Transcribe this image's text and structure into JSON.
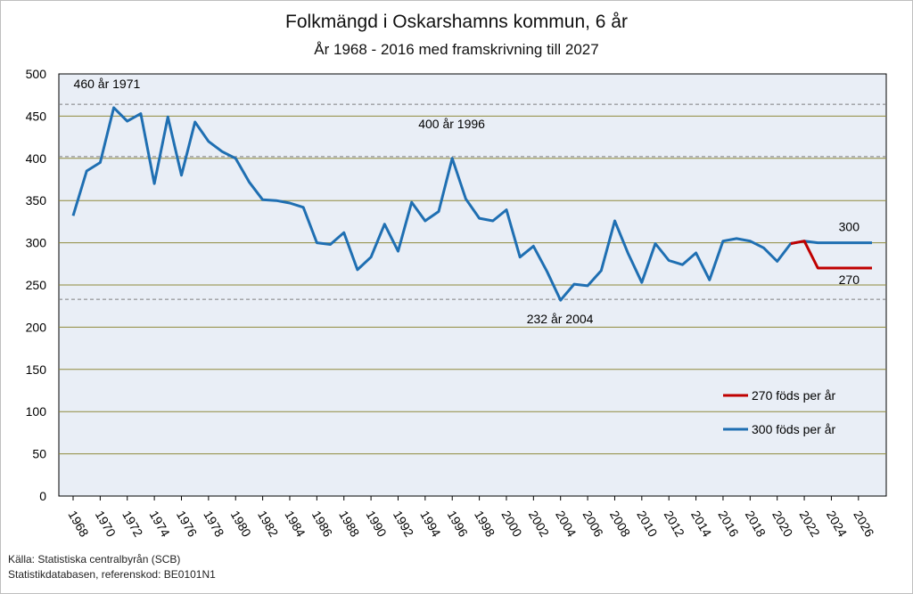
{
  "title": "Folkmängd i Oskarshamns kommun, 6 år",
  "subtitle": "År 1968 - 2016 med framskrivning till 2027",
  "source_line1": "Källa: Statistiska centralbyrån (SCB)",
  "source_line2": "Statistikdatabasen, referenskod: BE0101N1",
  "colors": {
    "blue": "#1f6fb2",
    "red": "#c00000",
    "plot_bg": "#e9eef6",
    "grid": "#8f8a3c",
    "ref": "#7f7f7f"
  },
  "chart_data": {
    "type": "line",
    "title": "Folkmängd i Oskarshamns kommun, 6 år",
    "subtitle": "År 1968 - 2016 med framskrivning till 2027",
    "xlim": [
      1968,
      2027
    ],
    "ylim": [
      0,
      500
    ],
    "yticks": [
      0,
      50,
      100,
      150,
      200,
      250,
      300,
      350,
      400,
      450,
      500
    ],
    "xticks": [
      "1968",
      "1970",
      "1972",
      "1974",
      "1976",
      "1978",
      "1980",
      "1982",
      "1984",
      "1986",
      "1988",
      "1990",
      "1992",
      "1994",
      "1996",
      "1998",
      "2000",
      "2002",
      "2004",
      "2006",
      "2008",
      "2010",
      "2012",
      "2014",
      "2016",
      "2018",
      "2020",
      "2022",
      "2024",
      "2026"
    ],
    "grid": true,
    "legend_position": "right",
    "series": [
      {
        "name": "300 föds per år",
        "color": "#1f6fb2",
        "x": [
          1968,
          1969,
          1970,
          1971,
          1972,
          1973,
          1974,
          1975,
          1976,
          1977,
          1978,
          1979,
          1980,
          1981,
          1982,
          1983,
          1984,
          1985,
          1986,
          1987,
          1988,
          1989,
          1990,
          1991,
          1992,
          1993,
          1994,
          1995,
          1996,
          1997,
          1998,
          1999,
          2000,
          2001,
          2002,
          2003,
          2004,
          2005,
          2006,
          2007,
          2008,
          2009,
          2010,
          2011,
          2012,
          2013,
          2014,
          2015,
          2016,
          2017,
          2018,
          2019,
          2020,
          2021,
          2022,
          2023,
          2024,
          2025,
          2026,
          2027
        ],
        "values": [
          332,
          385,
          395,
          460,
          444,
          453,
          370,
          449,
          380,
          443,
          420,
          408,
          400,
          372,
          351,
          350,
          347,
          342,
          300,
          298,
          312,
          268,
          283,
          322,
          290,
          348,
          326,
          337,
          400,
          352,
          329,
          326,
          339,
          283,
          296,
          266,
          232,
          251,
          249,
          267,
          326,
          287,
          253,
          299,
          279,
          274,
          288,
          256,
          302,
          305,
          302,
          294,
          278,
          299,
          302,
          300,
          300,
          300,
          300,
          300
        ]
      },
      {
        "name": "270 föds per år",
        "color": "#c00000",
        "x": [
          2021,
          2022,
          2023,
          2024,
          2025,
          2026,
          2027
        ],
        "values": [
          299,
          302,
          270,
          270,
          270,
          270,
          270
        ]
      }
    ],
    "reference_lines": [
      464,
      402,
      233
    ],
    "annotations": [
      {
        "text": "460 år 1971",
        "x": 1971,
        "y": 460
      },
      {
        "text": "400 år 1996",
        "x": 1996,
        "y": 400
      },
      {
        "text": "232 år 2004",
        "x": 2004,
        "y": 232
      },
      {
        "text": "300",
        "x": 2027,
        "y": 300
      },
      {
        "text": "270",
        "x": 2027,
        "y": 270
      }
    ]
  }
}
